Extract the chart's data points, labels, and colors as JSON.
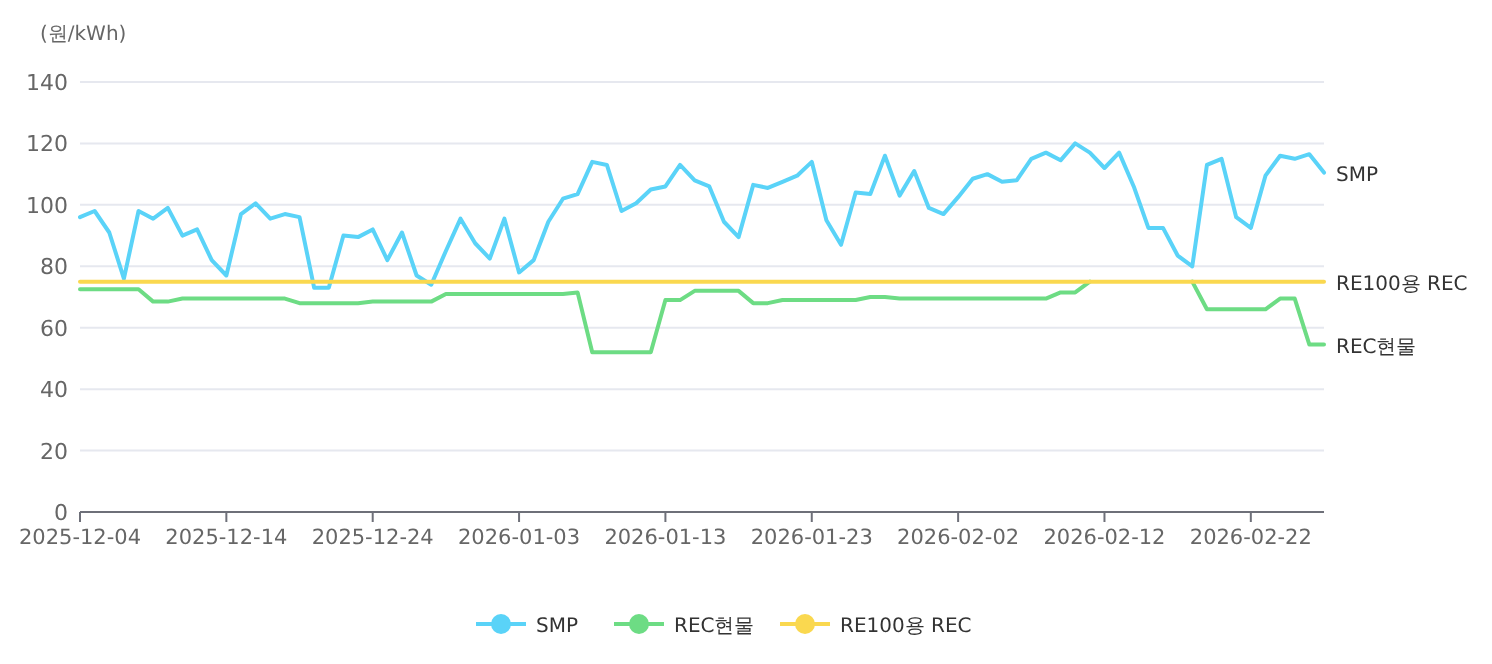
{
  "chart_data": {
    "type": "line",
    "ylabel": "(원/kWh)",
    "x": [
      "2025-12-04",
      "2025-12-05",
      "2025-12-06",
      "2025-12-07",
      "2025-12-08",
      "2025-12-09",
      "2025-12-10",
      "2025-12-11",
      "2025-12-12",
      "2025-12-13",
      "2025-12-14",
      "2025-12-15",
      "2025-12-16",
      "2025-12-17",
      "2025-12-18",
      "2025-12-19",
      "2025-12-20",
      "2025-12-21",
      "2025-12-22",
      "2025-12-23",
      "2025-12-24",
      "2025-12-25",
      "2025-12-26",
      "2025-12-27",
      "2025-12-28",
      "2025-12-29",
      "2025-12-30",
      "2025-12-31",
      "2026-01-01",
      "2026-01-02",
      "2026-01-03",
      "2026-01-04",
      "2026-01-05",
      "2026-01-06",
      "2026-01-07",
      "2026-01-08",
      "2026-01-09",
      "2026-01-10",
      "2026-01-11",
      "2026-01-12",
      "2026-01-13",
      "2026-01-14",
      "2026-01-15",
      "2026-01-16",
      "2026-01-17",
      "2026-01-18",
      "2026-01-19",
      "2026-01-20",
      "2026-01-21",
      "2026-01-22",
      "2026-01-23",
      "2026-01-24",
      "2026-01-25",
      "2026-01-26",
      "2026-01-27",
      "2026-01-28",
      "2026-01-29",
      "2026-01-30",
      "2026-01-31",
      "2026-02-01",
      "2026-02-02",
      "2026-02-03",
      "2026-02-04",
      "2026-02-05",
      "2026-02-06",
      "2026-02-07",
      "2026-02-08",
      "2026-02-09",
      "2026-02-10",
      "2026-02-11",
      "2026-02-12",
      "2026-02-13",
      "2026-02-14",
      "2026-02-15",
      "2026-02-16",
      "2026-02-17",
      "2026-02-18",
      "2026-02-19",
      "2026-02-20",
      "2026-02-21",
      "2026-02-22",
      "2026-02-23",
      "2026-02-24",
      "2026-02-25",
      "2026-02-26",
      "2026-02-27"
    ],
    "series": [
      {
        "name": "SMP",
        "color": "#5ad3f8",
        "values": [
          96,
          98,
          91,
          76,
          98,
          95.5,
          99,
          90,
          92,
          82,
          77,
          97,
          100.5,
          95.5,
          97,
          96,
          73,
          73,
          90,
          89.5,
          92,
          82,
          91,
          77,
          74,
          85,
          95.5,
          87.5,
          82.5,
          95.5,
          78,
          82,
          94.5,
          102,
          103.5,
          114,
          113,
          98,
          100.5,
          105,
          106,
          113,
          108,
          106,
          94.5,
          89.5,
          106.5,
          105.5,
          107.5,
          109.5,
          114,
          95,
          87,
          104,
          103.5,
          116,
          103,
          111,
          99,
          97,
          102.5,
          108.5,
          110,
          107.5,
          108,
          115,
          117,
          114.5,
          120,
          117,
          112,
          117,
          106,
          92.5,
          92.5,
          83.5,
          80,
          113,
          115,
          96,
          92.5,
          109.5,
          116,
          115,
          116.5,
          110.5
        ]
      },
      {
        "name": "REC현물",
        "color": "#6ddc84",
        "values": [
          72.5,
          72.5,
          72.5,
          72.5,
          72.5,
          68.5,
          68.5,
          69.5,
          69.5,
          69.5,
          69.5,
          69.5,
          69.5,
          69.5,
          69.5,
          68,
          68,
          68,
          68,
          68,
          68.5,
          68.5,
          68.5,
          68.5,
          68.5,
          71,
          71,
          71,
          71,
          71,
          71,
          71,
          71,
          71,
          71.5,
          52,
          52,
          52,
          52,
          52,
          69,
          69,
          72,
          72,
          72,
          72,
          68,
          68,
          69,
          69,
          69,
          69,
          69,
          69,
          70,
          70,
          69.5,
          69.5,
          69.5,
          69.5,
          69.5,
          69.5,
          69.5,
          69.5,
          69.5,
          69.5,
          69.5,
          71.5,
          71.5,
          75,
          null,
          null,
          null,
          null,
          null,
          null,
          75,
          66,
          66,
          66,
          66,
          66,
          69.5,
          69.5,
          54.5,
          54.5
        ]
      },
      {
        "name": "RE100용 REC",
        "color": "#fad84f",
        "x": [
          "2025-12-04",
          "2026-02-27"
        ],
        "values": [
          75,
          75
        ]
      }
    ],
    "xlim": [
      "2025-12-04",
      "2026-02-27"
    ],
    "xticks": [
      "2025-12-04",
      "2025-12-14",
      "2025-12-24",
      "2026-01-03",
      "2026-01-13",
      "2026-01-23",
      "2026-02-02",
      "2026-02-12",
      "2026-02-22"
    ],
    "ylim": [
      0,
      140
    ],
    "yticks": [
      0,
      20,
      40,
      60,
      80,
      100,
      120,
      140
    ],
    "grid": "y",
    "legend": "bottom",
    "line_style": "solid"
  }
}
